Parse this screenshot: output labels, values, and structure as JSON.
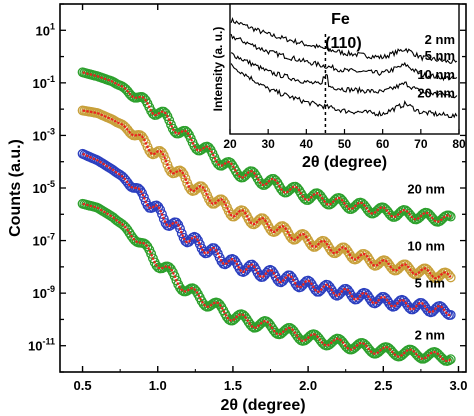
{
  "chart_data": [
    {
      "type": "line",
      "panel": "main",
      "xlabel": "2θ (degree)",
      "ylabel": "Counts (a.u.)",
      "xlim": [
        0.35,
        3.05
      ],
      "ylim_log10": [
        -12,
        2
      ],
      "y_scale": "log",
      "x_ticks": [
        "0.5",
        "1.0",
        "1.5",
        "2.0",
        "2.5",
        "3.0"
      ],
      "y_ticks": [
        {
          "base": "10",
          "exp": "1"
        },
        {
          "base": "10",
          "exp": "-1"
        },
        {
          "base": "10",
          "exp": "-3"
        },
        {
          "base": "10",
          "exp": "-5"
        },
        {
          "base": "10",
          "exp": "-7"
        },
        {
          "base": "10",
          "exp": "-9"
        },
        {
          "base": "10",
          "exp": "-11"
        }
      ],
      "marker_note": "open circles = measured data, red line = fit",
      "series": [
        {
          "name": "20 nm",
          "marker_color": "#2ca02c",
          "fit_color": "#e8251f",
          "x": [
            0.5,
            0.6,
            0.7,
            0.8,
            0.9,
            1.0,
            1.2,
            1.5,
            2.0,
            2.5,
            2.95
          ],
          "y_log10": [
            -0.6,
            -0.75,
            -0.95,
            -1.3,
            -1.7,
            -2.1,
            -3.1,
            -4.3,
            -5.3,
            -5.9,
            -6.2
          ]
        },
        {
          "name": "10 nm",
          "marker_color": "#c8a03a",
          "fit_color": "#e8251f",
          "x": [
            0.5,
            0.6,
            0.7,
            0.8,
            0.9,
            1.0,
            1.2,
            1.5,
            2.0,
            2.5,
            2.95
          ],
          "y_log10": [
            -2.05,
            -2.15,
            -2.4,
            -2.75,
            -3.2,
            -3.7,
            -4.8,
            -5.9,
            -7.0,
            -7.9,
            -8.4
          ]
        },
        {
          "name": "5 nm",
          "marker_color": "#2b3fbf",
          "fit_color": "#e8251f",
          "x": [
            0.5,
            0.6,
            0.7,
            0.8,
            0.9,
            1.0,
            1.2,
            1.5,
            2.0,
            2.5,
            2.95
          ],
          "y_log10": [
            -3.7,
            -3.95,
            -4.3,
            -4.75,
            -5.3,
            -5.9,
            -6.9,
            -7.9,
            -8.7,
            -9.3,
            -9.7
          ]
        },
        {
          "name": "2 nm",
          "marker_color": "#2ca02c",
          "fit_color": "#e8251f",
          "x": [
            0.5,
            0.6,
            0.7,
            0.8,
            0.9,
            1.0,
            1.2,
            1.5,
            2.0,
            2.5,
            2.95
          ],
          "y_log10": [
            -5.6,
            -5.75,
            -6.1,
            -6.6,
            -7.2,
            -7.8,
            -8.9,
            -9.9,
            -10.7,
            -11.2,
            -11.45
          ]
        }
      ]
    },
    {
      "type": "line",
      "panel": "inset",
      "xlabel": "2θ (degree)",
      "ylabel": "Intensity (a. u.)",
      "xlim": [
        20,
        80
      ],
      "x_ticks": [
        "20",
        "30",
        "40",
        "50",
        "60",
        "70",
        "80"
      ],
      "annotation": {
        "line1": "Fe",
        "line2": "(110)",
        "x": 45
      },
      "series": [
        {
          "name": "2 nm",
          "x": [
            20,
            30,
            40,
            50,
            60,
            66,
            70,
            80
          ],
          "y": [
            9.4,
            8.4,
            7.7,
            7.1,
            6.8,
            7.4,
            6.8,
            6.4
          ]
        },
        {
          "name": "5 nm",
          "x": [
            20,
            30,
            40,
            50,
            60,
            66,
            70,
            80
          ],
          "y": [
            8.3,
            7.2,
            6.5,
            5.9,
            5.7,
            6.3,
            5.6,
            5.3
          ]
        },
        {
          "name": "10 nm",
          "x": [
            20,
            30,
            40,
            50,
            60,
            66,
            70,
            80
          ],
          "y": [
            7.1,
            5.8,
            5.1,
            4.6,
            4.4,
            5.0,
            4.4,
            4.1
          ]
        },
        {
          "name": "20 nm",
          "x": [
            20,
            30,
            40,
            50,
            60,
            66,
            70,
            80
          ],
          "y": [
            6.3,
            4.6,
            3.7,
            3.1,
            2.9,
            3.6,
            3.0,
            2.7
          ]
        }
      ]
    }
  ]
}
